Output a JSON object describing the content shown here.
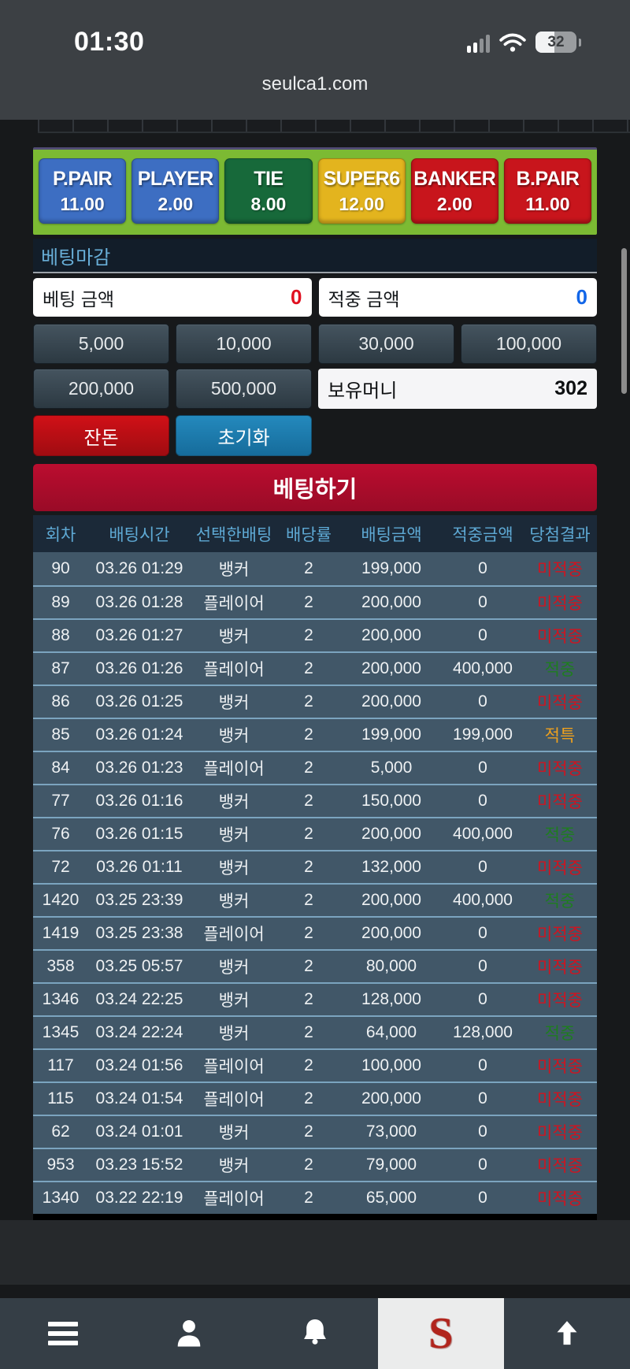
{
  "status_bar": {
    "time": "01:30",
    "battery_percent": "32"
  },
  "url_bar": {
    "url": "seulca1.com"
  },
  "odds_panel": {
    "panel_color": "#7cba33",
    "buttons": [
      {
        "label": "P.PAIR",
        "value": "11.00",
        "color": "#3d6ec2"
      },
      {
        "label": "PLAYER",
        "value": "2.00",
        "color": "#3d6ec2"
      },
      {
        "label": "TIE",
        "value": "8.00",
        "color": "#17693a"
      },
      {
        "label": "SUPER6",
        "value": "12.00",
        "color": "#e3b41e"
      },
      {
        "label": "BANKER",
        "value": "2.00",
        "color": "#c8151c"
      },
      {
        "label": "B.PAIR",
        "value": "11.00",
        "color": "#c8151c"
      }
    ]
  },
  "betting_status_label": "베팅마감",
  "bet_form": {
    "bet_amount_label": "베팅 금액",
    "bet_amount_value": "0",
    "win_amount_label": "적중 금액",
    "win_amount_value": "0",
    "chips_row1": [
      "5,000",
      "10,000",
      "30,000",
      "100,000"
    ],
    "chips_row2": [
      "200,000",
      "500,000"
    ],
    "balance_label": "보유머니",
    "balance_value": "302",
    "change_button_label": "잔돈",
    "reset_button_label": "초기화",
    "bet_button_label": "베팅하기"
  },
  "colors": {
    "bet_amount_zero": "#e01020",
    "win_amount_zero": "#1266e8",
    "result_lose": "#cf1420",
    "result_win": "#1e7d1f",
    "result_special": "#eda01e"
  },
  "history_table": {
    "headers": [
      "회차",
      "배팅시간",
      "선택한배팅",
      "배당률",
      "배팅금액",
      "적중금액",
      "당첨결과"
    ],
    "rows": [
      {
        "round": "90",
        "time": "03.26 01:29",
        "pick": "뱅커",
        "odds": "2",
        "bet": "199,000",
        "win": "0",
        "result": "미적중",
        "result_type": "lose"
      },
      {
        "round": "89",
        "time": "03.26 01:28",
        "pick": "플레이어",
        "odds": "2",
        "bet": "200,000",
        "win": "0",
        "result": "미적중",
        "result_type": "lose"
      },
      {
        "round": "88",
        "time": "03.26 01:27",
        "pick": "뱅커",
        "odds": "2",
        "bet": "200,000",
        "win": "0",
        "result": "미적중",
        "result_type": "lose"
      },
      {
        "round": "87",
        "time": "03.26 01:26",
        "pick": "플레이어",
        "odds": "2",
        "bet": "200,000",
        "win": "400,000",
        "result": "적중",
        "result_type": "win"
      },
      {
        "round": "86",
        "time": "03.26 01:25",
        "pick": "뱅커",
        "odds": "2",
        "bet": "200,000",
        "win": "0",
        "result": "미적중",
        "result_type": "lose"
      },
      {
        "round": "85",
        "time": "03.26 01:24",
        "pick": "뱅커",
        "odds": "2",
        "bet": "199,000",
        "win": "199,000",
        "result": "적특",
        "result_type": "special"
      },
      {
        "round": "84",
        "time": "03.26 01:23",
        "pick": "플레이어",
        "odds": "2",
        "bet": "5,000",
        "win": "0",
        "result": "미적중",
        "result_type": "lose"
      },
      {
        "round": "77",
        "time": "03.26 01:16",
        "pick": "뱅커",
        "odds": "2",
        "bet": "150,000",
        "win": "0",
        "result": "미적중",
        "result_type": "lose"
      },
      {
        "round": "76",
        "time": "03.26 01:15",
        "pick": "뱅커",
        "odds": "2",
        "bet": "200,000",
        "win": "400,000",
        "result": "적중",
        "result_type": "win"
      },
      {
        "round": "72",
        "time": "03.26 01:11",
        "pick": "뱅커",
        "odds": "2",
        "bet": "132,000",
        "win": "0",
        "result": "미적중",
        "result_type": "lose"
      },
      {
        "round": "1420",
        "time": "03.25 23:39",
        "pick": "뱅커",
        "odds": "2",
        "bet": "200,000",
        "win": "400,000",
        "result": "적중",
        "result_type": "win"
      },
      {
        "round": "1419",
        "time": "03.25 23:38",
        "pick": "플레이어",
        "odds": "2",
        "bet": "200,000",
        "win": "0",
        "result": "미적중",
        "result_type": "lose"
      },
      {
        "round": "358",
        "time": "03.25 05:57",
        "pick": "뱅커",
        "odds": "2",
        "bet": "80,000",
        "win": "0",
        "result": "미적중",
        "result_type": "lose"
      },
      {
        "round": "1346",
        "time": "03.24 22:25",
        "pick": "뱅커",
        "odds": "2",
        "bet": "128,000",
        "win": "0",
        "result": "미적중",
        "result_type": "lose"
      },
      {
        "round": "1345",
        "time": "03.24 22:24",
        "pick": "뱅커",
        "odds": "2",
        "bet": "64,000",
        "win": "128,000",
        "result": "적중",
        "result_type": "win"
      },
      {
        "round": "117",
        "time": "03.24 01:56",
        "pick": "플레이어",
        "odds": "2",
        "bet": "100,000",
        "win": "0",
        "result": "미적중",
        "result_type": "lose"
      },
      {
        "round": "115",
        "time": "03.24 01:54",
        "pick": "플레이어",
        "odds": "2",
        "bet": "200,000",
        "win": "0",
        "result": "미적중",
        "result_type": "lose"
      },
      {
        "round": "62",
        "time": "03.24 01:01",
        "pick": "뱅커",
        "odds": "2",
        "bet": "73,000",
        "win": "0",
        "result": "미적중",
        "result_type": "lose"
      },
      {
        "round": "953",
        "time": "03.23 15:52",
        "pick": "뱅커",
        "odds": "2",
        "bet": "79,000",
        "win": "0",
        "result": "미적중",
        "result_type": "lose"
      },
      {
        "round": "1340",
        "time": "03.22 22:19",
        "pick": "플레이어",
        "odds": "2",
        "bet": "65,000",
        "win": "0",
        "result": "미적중",
        "result_type": "lose"
      }
    ]
  },
  "bottom_nav": {
    "logo_letter": "S"
  }
}
